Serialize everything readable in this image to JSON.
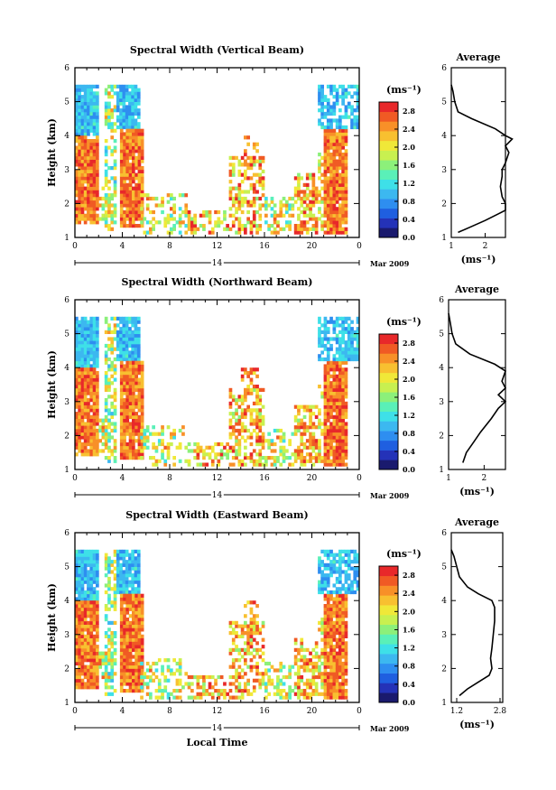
{
  "figure": {
    "xlabel": "Local Time",
    "date_label": "14",
    "month_label": "Mar 2009",
    "colorbar_unit": "(ms⁻¹)",
    "average_unit": "(ms⁻¹)"
  },
  "chart_data": [
    {
      "type": "heatmap",
      "title": "Spectral Width (Vertical Beam)",
      "ylabel": "Height (km)",
      "xticks": [
        "0",
        "4",
        "8",
        "12",
        "16",
        "20",
        "0"
      ],
      "yticks": [
        "1",
        "2",
        "3",
        "4",
        "5",
        "6"
      ],
      "xlim": [
        0,
        24
      ],
      "ylim": [
        1,
        6
      ],
      "colorbar_ticks": [
        "0.0",
        "0.4",
        "0.8",
        "1.2",
        "1.6",
        "2.0",
        "2.4",
        "2.8"
      ],
      "colorbar_range": [
        0,
        3.0
      ],
      "average": {
        "title": "Average",
        "xticks": [
          "1",
          "2"
        ],
        "xlim": [
          1,
          2.6
        ],
        "profile": [
          [
            1.2,
            1.15
          ],
          [
            1.55,
            1.3
          ],
          [
            2.0,
            1.5
          ],
          [
            2.4,
            1.7
          ],
          [
            2.6,
            1.8
          ],
          [
            2.6,
            2.0
          ],
          [
            2.5,
            2.2
          ],
          [
            2.45,
            2.5
          ],
          [
            2.5,
            2.8
          ],
          [
            2.5,
            3.0
          ],
          [
            2.6,
            3.2
          ],
          [
            2.7,
            3.5
          ],
          [
            2.6,
            3.7
          ],
          [
            2.8,
            3.9
          ],
          [
            2.6,
            4.0
          ],
          [
            2.3,
            4.2
          ],
          [
            1.6,
            4.5
          ],
          [
            1.2,
            4.7
          ],
          [
            1.1,
            5.0
          ],
          [
            1.05,
            5.3
          ],
          [
            1.0,
            5.5
          ]
        ]
      }
    },
    {
      "type": "heatmap",
      "title": "Spectral Width (Northward Beam)",
      "ylabel": "Height (km)",
      "xticks": [
        "0",
        "4",
        "8",
        "12",
        "16",
        "20",
        "0"
      ],
      "yticks": [
        "1",
        "2",
        "3",
        "4",
        "5",
        "6"
      ],
      "xlim": [
        0,
        24
      ],
      "ylim": [
        1,
        6
      ],
      "colorbar_ticks": [
        "0.0",
        "0.4",
        "0.8",
        "1.2",
        "1.6",
        "2.0",
        "2.4",
        "2.8"
      ],
      "colorbar_range": [
        0,
        3.0
      ],
      "average": {
        "title": "Average",
        "xticks": [
          "1",
          "2"
        ],
        "xlim": [
          1,
          2.6
        ],
        "profile": [
          [
            1.4,
            1.2
          ],
          [
            1.5,
            1.5
          ],
          [
            1.7,
            1.8
          ],
          [
            1.9,
            2.1
          ],
          [
            2.2,
            2.5
          ],
          [
            2.4,
            2.8
          ],
          [
            2.6,
            3.0
          ],
          [
            2.4,
            3.2
          ],
          [
            2.6,
            3.4
          ],
          [
            2.5,
            3.6
          ],
          [
            2.6,
            3.9
          ],
          [
            2.3,
            4.1
          ],
          [
            1.6,
            4.4
          ],
          [
            1.2,
            4.7
          ],
          [
            1.1,
            5.0
          ],
          [
            1.05,
            5.3
          ],
          [
            1.0,
            5.6
          ]
        ]
      }
    },
    {
      "type": "heatmap",
      "title": "Spectral Width (Eastward Beam)",
      "ylabel": "Height (km)",
      "xticks": [
        "0",
        "4",
        "8",
        "12",
        "16",
        "20",
        "0"
      ],
      "yticks": [
        "1",
        "2",
        "3",
        "4",
        "5",
        "6"
      ],
      "xlim": [
        0,
        24
      ],
      "ylim": [
        1,
        6
      ],
      "colorbar_ticks": [
        "0.0",
        "0.4",
        "0.8",
        "1.2",
        "1.6",
        "2.0",
        "2.4",
        "2.8"
      ],
      "colorbar_range": [
        0,
        3.0
      ],
      "average": {
        "title": "Average",
        "xticks": [
          "1.2",
          "2.8"
        ],
        "xlim": [
          1.0,
          2.9
        ],
        "profile": [
          [
            1.3,
            1.2
          ],
          [
            1.6,
            1.4
          ],
          [
            2.0,
            1.6
          ],
          [
            2.4,
            1.8
          ],
          [
            2.5,
            2.0
          ],
          [
            2.45,
            2.3
          ],
          [
            2.5,
            2.6
          ],
          [
            2.55,
            3.0
          ],
          [
            2.6,
            3.4
          ],
          [
            2.6,
            3.8
          ],
          [
            2.5,
            4.0
          ],
          [
            2.0,
            4.2
          ],
          [
            1.6,
            4.4
          ],
          [
            1.3,
            4.7
          ],
          [
            1.2,
            5.0
          ],
          [
            1.1,
            5.3
          ],
          [
            1.0,
            5.5
          ]
        ]
      }
    }
  ]
}
